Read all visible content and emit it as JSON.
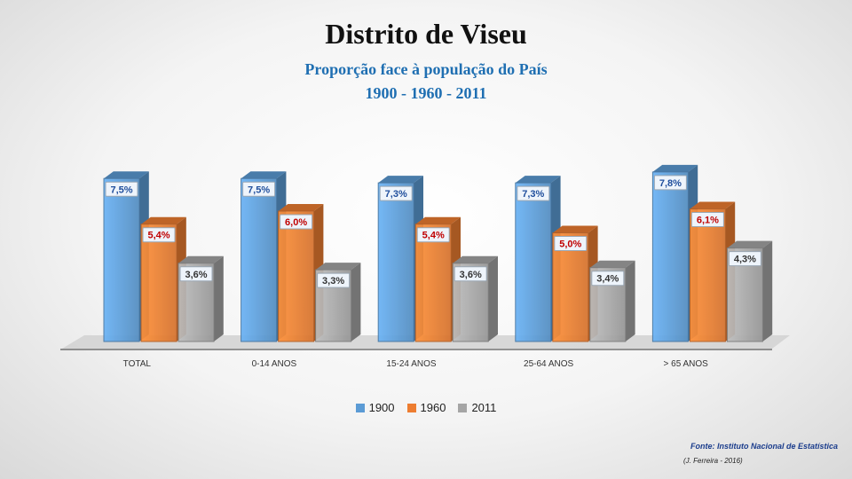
{
  "header": {
    "title": "Distrito de Viseu",
    "subtitle_line1": "Proporção face à população do País",
    "subtitle_line2": "1900 - 1960 - 2011"
  },
  "footer": {
    "source": "Fonte: Instituto Nacional de Estatística",
    "author": "(J. Ferreira - 2016)"
  },
  "chart_data": {
    "type": "bar",
    "title": "Distrito de Viseu",
    "subtitle": "Proporção face à população do País",
    "categories": [
      "TOTAL",
      "0-14 ANOS",
      "15-24 ANOS",
      "25-64 ANOS",
      "> 65 ANOS"
    ],
    "series": [
      {
        "name": "1900",
        "values": [
          7.5,
          7.5,
          7.3,
          7.3,
          7.8
        ],
        "labels": [
          "7,5%",
          "7,5%",
          "7,3%",
          "7,3%",
          "7,8%"
        ],
        "color": "#5b9bd5"
      },
      {
        "name": "1960",
        "values": [
          5.4,
          6.0,
          5.4,
          5.0,
          6.1
        ],
        "labels": [
          "5,4%",
          "6,0%",
          "5,4%",
          "5,0%",
          "6,1%"
        ],
        "color": "#ed7d31"
      },
      {
        "name": "2011",
        "values": [
          3.6,
          3.3,
          3.6,
          3.4,
          4.3
        ],
        "labels": [
          "3,6%",
          "3,3%",
          "3,6%",
          "3,4%",
          "4,3%"
        ],
        "color": "#a5a5a5"
      }
    ],
    "label_colors": {
      "1900": "#1f4e9c",
      "1960": "#c00000",
      "2011": "#333333"
    },
    "ylim": [
      0,
      8
    ],
    "grid": false,
    "legend_position": "bottom"
  }
}
